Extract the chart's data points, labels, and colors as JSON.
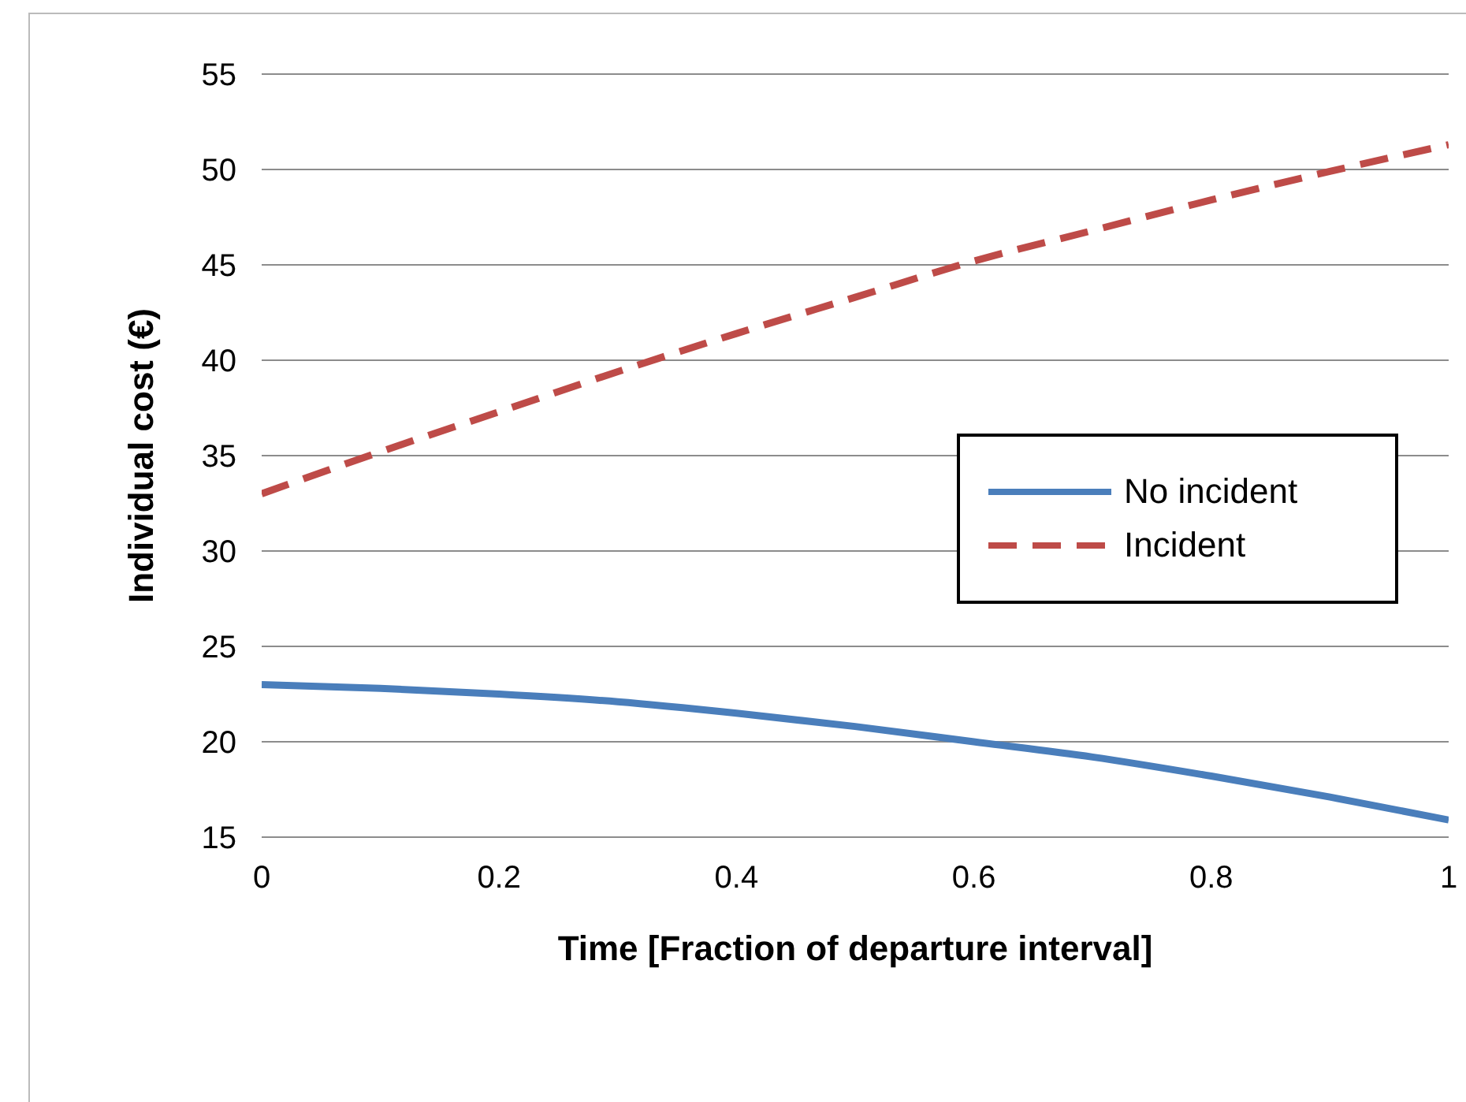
{
  "chart_data": {
    "type": "line",
    "xlabel": "Time [Fraction  of departure interval]",
    "ylabel": "Individual cost  (€)",
    "x": [
      0,
      0.1,
      0.2,
      0.3,
      0.4,
      0.5,
      0.6,
      0.7,
      0.8,
      0.9,
      1
    ],
    "series": [
      {
        "name": "No incident",
        "color": "#4a7ebb",
        "line_style": "solid",
        "values": [
          23,
          22.8,
          22.5,
          22.1,
          21.5,
          20.8,
          20,
          19.2,
          18.2,
          17.1,
          15.9
        ]
      },
      {
        "name": "Incident",
        "color": "#be4b48",
        "line_style": "dashed",
        "values": [
          33,
          35.2,
          37.3,
          39.4,
          41.4,
          43.3,
          45.2,
          46.8,
          48.4,
          49.9,
          51.3
        ]
      }
    ],
    "xlim": [
      0,
      1
    ],
    "xticks": [
      0,
      0.2,
      0.4,
      0.6,
      0.8,
      1
    ],
    "ylim": [
      15,
      55
    ],
    "yticks": [
      15,
      20,
      25,
      30,
      35,
      40,
      45,
      50,
      55
    ],
    "grid": "y",
    "legend": "right",
    "marker": "none"
  }
}
